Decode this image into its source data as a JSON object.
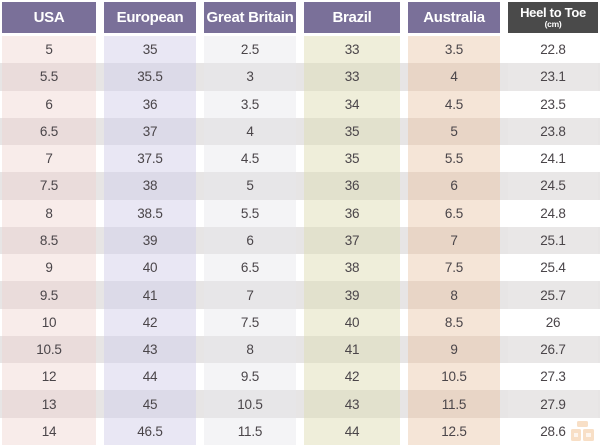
{
  "chart_data": {
    "type": "table",
    "columns": [
      {
        "label": "USA"
      },
      {
        "label": "European"
      },
      {
        "label": "Great Britain"
      },
      {
        "label": "Brazil"
      },
      {
        "label": "Australia"
      },
      {
        "label": "Heel to Toe",
        "sublabel": "(cm)"
      }
    ],
    "rows": [
      [
        "5",
        "35",
        "2.5",
        "33",
        "3.5",
        "22.8"
      ],
      [
        "5.5",
        "35.5",
        "3",
        "33",
        "4",
        "23.1"
      ],
      [
        "6",
        "36",
        "3.5",
        "34",
        "4.5",
        "23.5"
      ],
      [
        "6.5",
        "37",
        "4",
        "35",
        "5",
        "23.8"
      ],
      [
        "7",
        "37.5",
        "4.5",
        "35",
        "5.5",
        "24.1"
      ],
      [
        "7.5",
        "38",
        "5",
        "36",
        "6",
        "24.5"
      ],
      [
        "8",
        "38.5",
        "5.5",
        "36",
        "6.5",
        "24.8"
      ],
      [
        "8.5",
        "39",
        "6",
        "37",
        "7",
        "25.1"
      ],
      [
        "9",
        "40",
        "6.5",
        "38",
        "7.5",
        "25.4"
      ],
      [
        "9.5",
        "41",
        "7",
        "39",
        "8",
        "25.7"
      ],
      [
        "10",
        "42",
        "7.5",
        "40",
        "8.5",
        "26"
      ],
      [
        "10.5",
        "43",
        "8",
        "41",
        "9",
        "26.7"
      ],
      [
        "12",
        "44",
        "9.5",
        "42",
        "10.5",
        "27.3"
      ],
      [
        "13",
        "45",
        "10.5",
        "43",
        "11.5",
        "27.9"
      ],
      [
        "14",
        "46.5",
        "11.5",
        "44",
        "12.5",
        "28.6"
      ]
    ]
  },
  "colors": {
    "header_bg": "#7a7099",
    "header_text": "#ffffff",
    "heel_header_bg": "#4a4a4a",
    "body_text": "#4a4549",
    "column_tints_light": [
      "#f8ecea",
      "#e9e7f4",
      "#f4f4f6",
      "#efeeda",
      "#f5e5d7",
      "#ffffff"
    ],
    "column_tints_dark": [
      "#eadcdb",
      "#dcdae8",
      "#e7e6e8",
      "#e2e1cd",
      "#e8d5c6",
      "#e9e7e7"
    ],
    "row_gutter_light": "#ffffff",
    "row_gutter_dark": "#e7e5e5",
    "watermark": "#eda65f"
  }
}
